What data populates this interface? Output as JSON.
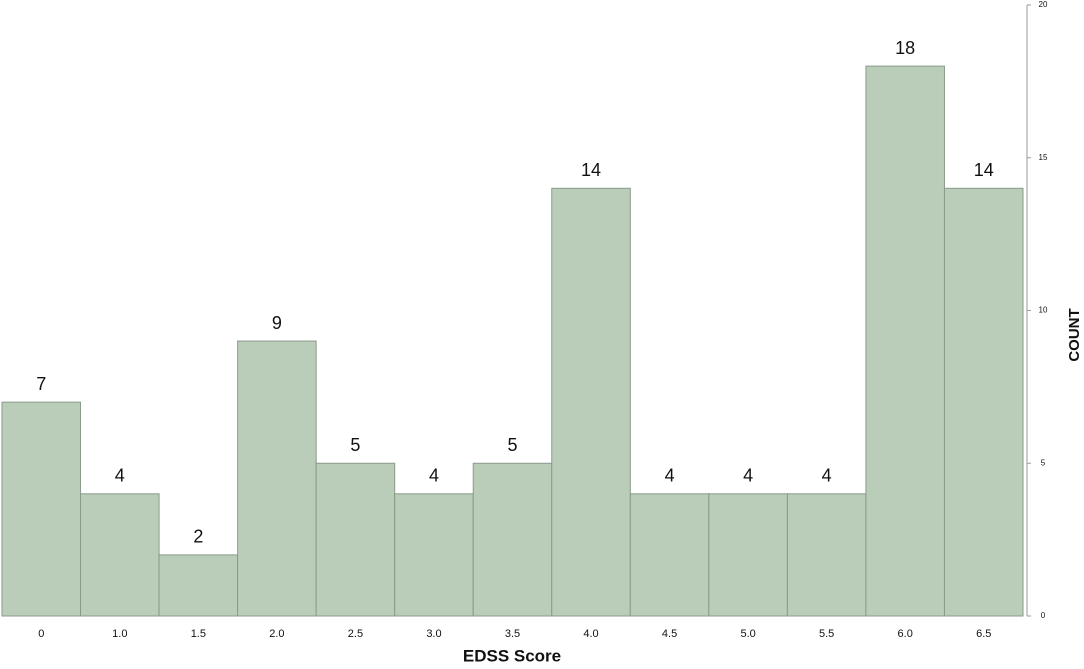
{
  "chart_data": {
    "type": "bar",
    "categories": [
      "0",
      "1.0",
      "1.5",
      "2.0",
      "2.5",
      "3.0",
      "3.5",
      "4.0",
      "4.5",
      "5.0",
      "5.5",
      "6.0",
      "6.5"
    ],
    "values": [
      7,
      4,
      2,
      9,
      5,
      4,
      5,
      14,
      4,
      4,
      4,
      18,
      14
    ],
    "color": "#b9cdb9",
    "xlabel": "EDSS Score",
    "ylabel": "COUNT",
    "ylim": [
      0,
      20
    ],
    "yticks": [
      0,
      5,
      10,
      15,
      20
    ],
    "grid": false
  }
}
